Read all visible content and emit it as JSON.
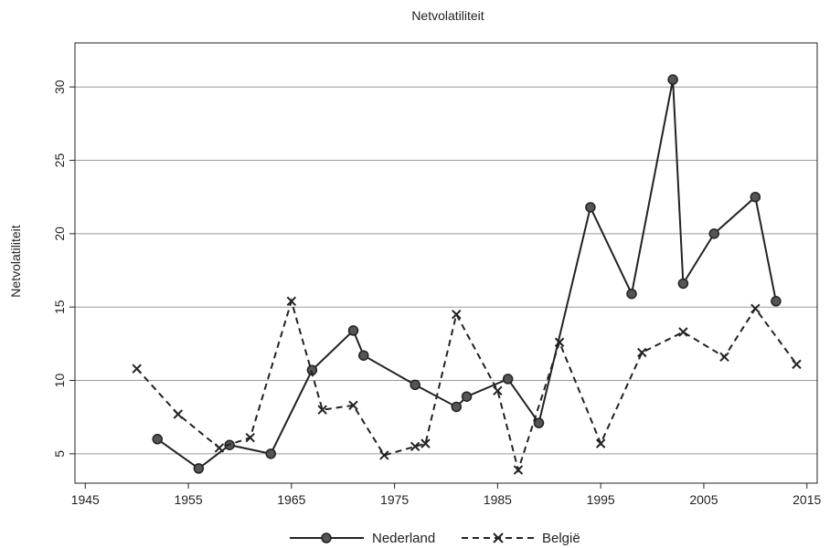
{
  "chart_data": {
    "type": "line",
    "title": "Netvolatiliteit",
    "xlabel": "",
    "ylabel": "Netvolatiliteit",
    "xlim": [
      1944,
      2016
    ],
    "ylim": [
      3,
      33
    ],
    "xticks": [
      1945,
      1955,
      1965,
      1975,
      1985,
      1995,
      2005,
      2015
    ],
    "yticks": [
      5,
      10,
      15,
      20,
      25,
      30
    ],
    "grid": "horizontal",
    "legend_position": "bottom",
    "series": [
      {
        "name": "Nederland",
        "style": "solid",
        "marker": "circle",
        "color": "#222222",
        "x": [
          1952,
          1956,
          1959,
          1963,
          1967,
          1971,
          1972,
          1977,
          1981,
          1982,
          1986,
          1989,
          1994,
          1998,
          2002,
          2003,
          2006,
          2010,
          2012
        ],
        "y": [
          6.0,
          4.0,
          5.6,
          5.0,
          10.7,
          13.4,
          11.7,
          9.7,
          8.2,
          8.9,
          10.1,
          7.1,
          21.8,
          15.9,
          30.5,
          16.6,
          20.0,
          22.5,
          15.4
        ]
      },
      {
        "name": "België",
        "style": "dashed",
        "marker": "x",
        "color": "#222222",
        "x": [
          1950,
          1954,
          1958,
          1961,
          1965,
          1968,
          1971,
          1974,
          1977,
          1978,
          1981,
          1985,
          1987,
          1991,
          1995,
          1999,
          2003,
          2007,
          2010,
          2014
        ],
        "y": [
          10.8,
          7.7,
          5.4,
          6.1,
          15.4,
          8.0,
          8.3,
          4.9,
          5.5,
          5.7,
          14.5,
          9.3,
          3.9,
          12.6,
          5.7,
          11.9,
          13.3,
          11.6,
          14.9,
          11.1
        ]
      }
    ]
  }
}
